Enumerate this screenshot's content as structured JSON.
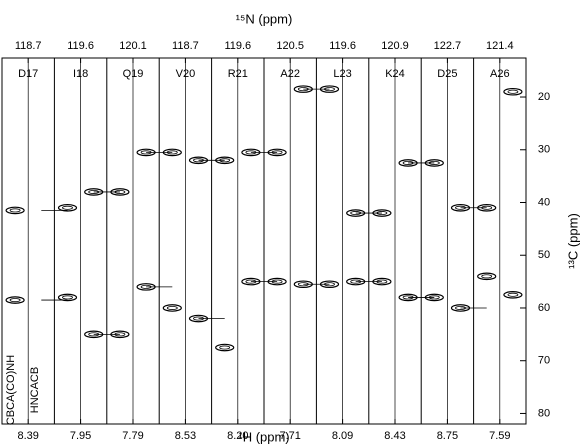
{
  "chart_data": {
    "type": "nmr-strips",
    "top_axis_label": "¹⁵N (ppm)",
    "x_label": "¹H (ppm)",
    "y_label": "¹³C (ppm)",
    "strip_labels": [
      "CBCA(CO)NH",
      "HNCACB"
    ],
    "strips": [
      {
        "residue": "D17",
        "n15": 118.7,
        "h1": 8.39,
        "peaks": [
          41.5,
          58.5
        ]
      },
      {
        "residue": "I18",
        "n15": 119.6,
        "h1": 7.95,
        "peaks": [
          41,
          58,
          38,
          65
        ]
      },
      {
        "residue": "Q19",
        "n15": 120.1,
        "h1": 7.79,
        "peaks": [
          38,
          65,
          30.5,
          56
        ]
      },
      {
        "residue": "V20",
        "n15": 118.7,
        "h1": 8.53,
        "peaks": [
          30.5,
          60,
          32,
          62
        ]
      },
      {
        "residue": "R21",
        "n15": 119.6,
        "h1": {
          "value": 8.2,
          "label": "8.20"
        },
        "peaks": [
          32,
          67.5,
          30.5,
          55
        ]
      },
      {
        "residue": "A22",
        "n15": 120.5,
        "h1": 7.71,
        "peaks": [
          30.5,
          55,
          18.5,
          55.5
        ]
      },
      {
        "residue": "L23",
        "n15": 119.6,
        "h1": 8.09,
        "peaks": [
          18.5,
          55.5,
          42,
          55
        ]
      },
      {
        "residue": "K24",
        "n15": 120.9,
        "h1": 8.43,
        "peaks": [
          42,
          55,
          32.5,
          58
        ]
      },
      {
        "residue": "D25",
        "n15": 122.7,
        "h1": 8.75,
        "peaks": [
          32.5,
          58,
          41,
          60
        ]
      },
      {
        "residue": "A26",
        "n15": 121.4,
        "h1": 7.59,
        "peaks": [
          41,
          54,
          19,
          57.5
        ]
      }
    ],
    "ylim": [
      12.6,
      82
    ],
    "yticks": [
      20,
      30,
      40,
      50,
      60,
      70,
      80
    ]
  }
}
